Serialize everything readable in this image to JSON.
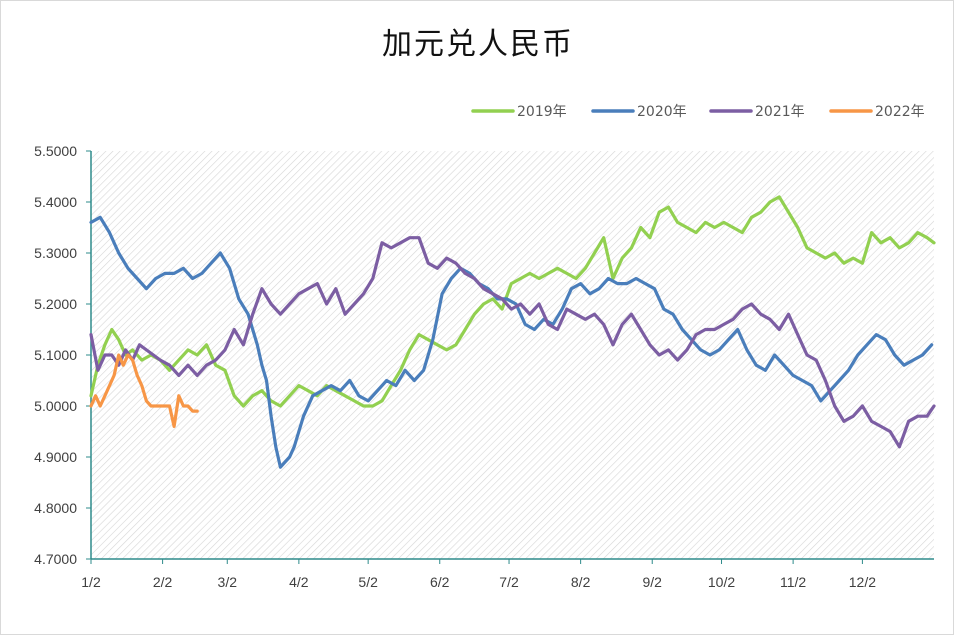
{
  "chart_data": {
    "type": "line",
    "title": "加元兑人民币",
    "xlabel": "",
    "ylabel": "",
    "ylim": [
      4.7,
      5.5
    ],
    "xlim": [
      0,
      365
    ],
    "grid": false,
    "legend_position": "top-right",
    "yticks": [
      {
        "value": 5.5,
        "label": "5.5000"
      },
      {
        "value": 5.4,
        "label": "5.4000"
      },
      {
        "value": 5.3,
        "label": "5.3000"
      },
      {
        "value": 5.2,
        "label": "5.2000"
      },
      {
        "value": 5.1,
        "label": "5.1000"
      },
      {
        "value": 5.0,
        "label": "5.0000"
      },
      {
        "value": 4.9,
        "label": "4.9000"
      },
      {
        "value": 4.8,
        "label": "4.8000"
      },
      {
        "value": 4.7,
        "label": "4.7000"
      }
    ],
    "xticks": [
      {
        "value": 0,
        "label": "1/2"
      },
      {
        "value": 31,
        "label": "2/2"
      },
      {
        "value": 59,
        "label": "3/2"
      },
      {
        "value": 90,
        "label": "4/2"
      },
      {
        "value": 120,
        "label": "5/2"
      },
      {
        "value": 151,
        "label": "6/2"
      },
      {
        "value": 181,
        "label": "7/2"
      },
      {
        "value": 212,
        "label": "8/2"
      },
      {
        "value": 243,
        "label": "9/2"
      },
      {
        "value": 273,
        "label": "10/2"
      },
      {
        "value": 304,
        "label": "11/2"
      },
      {
        "value": 334,
        "label": "12/2"
      }
    ],
    "series": [
      {
        "name": "2019年",
        "color": "#92d050",
        "x": [
          0,
          3,
          6,
          9,
          12,
          15,
          18,
          22,
          26,
          30,
          34,
          38,
          42,
          46,
          50,
          54,
          58,
          62,
          66,
          70,
          74,
          78,
          82,
          86,
          90,
          94,
          98,
          102,
          106,
          110,
          114,
          118,
          122,
          126,
          130,
          134,
          138,
          142,
          146,
          150,
          154,
          158,
          162,
          166,
          170,
          174,
          178,
          182,
          186,
          190,
          194,
          198,
          202,
          206,
          210,
          214,
          218,
          222,
          226,
          230,
          234,
          238,
          242,
          246,
          250,
          254,
          258,
          262,
          266,
          270,
          274,
          278,
          282,
          286,
          290,
          294,
          298,
          302,
          306,
          310,
          314,
          318,
          322,
          326,
          330,
          334,
          338,
          342,
          346,
          350,
          354,
          358,
          362,
          365
        ],
        "values": [
          5.02,
          5.08,
          5.12,
          5.15,
          5.13,
          5.1,
          5.11,
          5.09,
          5.1,
          5.09,
          5.07,
          5.09,
          5.11,
          5.1,
          5.12,
          5.08,
          5.07,
          5.02,
          5.0,
          5.02,
          5.03,
          5.01,
          5.0,
          5.02,
          5.04,
          5.03,
          5.02,
          5.04,
          5.03,
          5.02,
          5.01,
          5.0,
          5.0,
          5.01,
          5.04,
          5.07,
          5.11,
          5.14,
          5.13,
          5.12,
          5.11,
          5.12,
          5.15,
          5.18,
          5.2,
          5.21,
          5.19,
          5.24,
          5.25,
          5.26,
          5.25,
          5.26,
          5.27,
          5.26,
          5.25,
          5.27,
          5.3,
          5.33,
          5.25,
          5.29,
          5.31,
          5.35,
          5.33,
          5.38,
          5.39,
          5.36,
          5.35,
          5.34,
          5.36,
          5.35,
          5.36,
          5.35,
          5.34,
          5.37,
          5.38,
          5.4,
          5.41,
          5.38,
          5.35,
          5.31,
          5.3,
          5.29,
          5.3,
          5.28,
          5.29,
          5.28,
          5.34,
          5.32,
          5.33,
          5.31,
          5.32,
          5.34,
          5.33,
          5.32
        ]
      },
      {
        "name": "2020年",
        "color": "#4a7ebb",
        "x": [
          0,
          4,
          8,
          12,
          16,
          20,
          24,
          28,
          32,
          36,
          40,
          44,
          48,
          52,
          56,
          60,
          64,
          68,
          72,
          74,
          76,
          78,
          80,
          82,
          84,
          86,
          88,
          92,
          96,
          100,
          104,
          108,
          112,
          116,
          120,
          124,
          128,
          132,
          136,
          140,
          144,
          148,
          152,
          156,
          160,
          164,
          168,
          172,
          176,
          180,
          184,
          188,
          192,
          196,
          200,
          204,
          208,
          212,
          216,
          220,
          224,
          228,
          232,
          236,
          240,
          244,
          248,
          252,
          256,
          260,
          264,
          268,
          272,
          276,
          280,
          284,
          288,
          292,
          296,
          300,
          304,
          308,
          312,
          316,
          320,
          324,
          328,
          332,
          336,
          340,
          344,
          348,
          352,
          356,
          360,
          364
        ],
        "values": [
          5.36,
          5.37,
          5.34,
          5.3,
          5.27,
          5.25,
          5.23,
          5.25,
          5.26,
          5.26,
          5.27,
          5.25,
          5.26,
          5.28,
          5.3,
          5.27,
          5.21,
          5.18,
          5.12,
          5.08,
          5.05,
          4.98,
          4.92,
          4.88,
          4.89,
          4.9,
          4.92,
          4.98,
          5.02,
          5.03,
          5.04,
          5.03,
          5.05,
          5.02,
          5.01,
          5.03,
          5.05,
          5.04,
          5.07,
          5.05,
          5.07,
          5.13,
          5.22,
          5.25,
          5.27,
          5.26,
          5.24,
          5.23,
          5.21,
          5.21,
          5.2,
          5.16,
          5.15,
          5.17,
          5.16,
          5.19,
          5.23,
          5.24,
          5.22,
          5.23,
          5.25,
          5.24,
          5.24,
          5.25,
          5.24,
          5.23,
          5.19,
          5.18,
          5.15,
          5.13,
          5.11,
          5.1,
          5.11,
          5.13,
          5.15,
          5.11,
          5.08,
          5.07,
          5.1,
          5.08,
          5.06,
          5.05,
          5.04,
          5.01,
          5.03,
          5.05,
          5.07,
          5.1,
          5.12,
          5.14,
          5.13,
          5.1,
          5.08,
          5.09,
          5.1,
          5.12
        ]
      },
      {
        "name": "2021年",
        "color": "#7c5ea3",
        "x": [
          0,
          3,
          6,
          9,
          12,
          15,
          18,
          21,
          24,
          27,
          30,
          34,
          38,
          42,
          46,
          50,
          54,
          58,
          62,
          66,
          70,
          74,
          78,
          82,
          86,
          90,
          94,
          98,
          102,
          106,
          110,
          114,
          118,
          122,
          126,
          130,
          134,
          138,
          142,
          146,
          150,
          154,
          158,
          162,
          166,
          170,
          174,
          178,
          182,
          186,
          190,
          194,
          198,
          202,
          206,
          210,
          214,
          218,
          222,
          226,
          230,
          234,
          238,
          242,
          246,
          250,
          254,
          258,
          262,
          266,
          270,
          274,
          278,
          282,
          286,
          290,
          294,
          298,
          302,
          306,
          310,
          314,
          318,
          322,
          326,
          330,
          334,
          338,
          342,
          346,
          350,
          354,
          358,
          362,
          365
        ],
        "values": [
          5.14,
          5.07,
          5.1,
          5.1,
          5.08,
          5.11,
          5.09,
          5.12,
          5.11,
          5.1,
          5.09,
          5.08,
          5.06,
          5.08,
          5.06,
          5.08,
          5.09,
          5.11,
          5.15,
          5.12,
          5.18,
          5.23,
          5.2,
          5.18,
          5.2,
          5.22,
          5.23,
          5.24,
          5.2,
          5.23,
          5.18,
          5.2,
          5.22,
          5.25,
          5.32,
          5.31,
          5.32,
          5.33,
          5.33,
          5.28,
          5.27,
          5.29,
          5.28,
          5.26,
          5.25,
          5.23,
          5.22,
          5.21,
          5.19,
          5.2,
          5.18,
          5.2,
          5.16,
          5.15,
          5.19,
          5.18,
          5.17,
          5.18,
          5.16,
          5.12,
          5.16,
          5.18,
          5.15,
          5.12,
          5.1,
          5.11,
          5.09,
          5.11,
          5.14,
          5.15,
          5.15,
          5.16,
          5.17,
          5.19,
          5.2,
          5.18,
          5.17,
          5.15,
          5.18,
          5.14,
          5.1,
          5.09,
          5.05,
          5.0,
          4.97,
          4.98,
          5.0,
          4.97,
          4.96,
          4.95,
          4.92,
          4.97,
          4.98,
          4.98,
          5.0
        ]
      },
      {
        "name": "2022年",
        "color": "#f79646",
        "x": [
          0,
          2,
          4,
          6,
          8,
          10,
          12,
          14,
          16,
          18,
          20,
          22,
          24,
          26,
          28,
          30,
          32,
          34,
          36,
          38,
          40,
          42,
          44,
          46
        ],
        "values": [
          5.0,
          5.02,
          5.0,
          5.02,
          5.04,
          5.06,
          5.1,
          5.08,
          5.1,
          5.09,
          5.06,
          5.04,
          5.01,
          5.0,
          5.0,
          5.0,
          5.0,
          5.0,
          4.96,
          5.02,
          5.0,
          5.0,
          4.99,
          4.99
        ]
      }
    ]
  }
}
